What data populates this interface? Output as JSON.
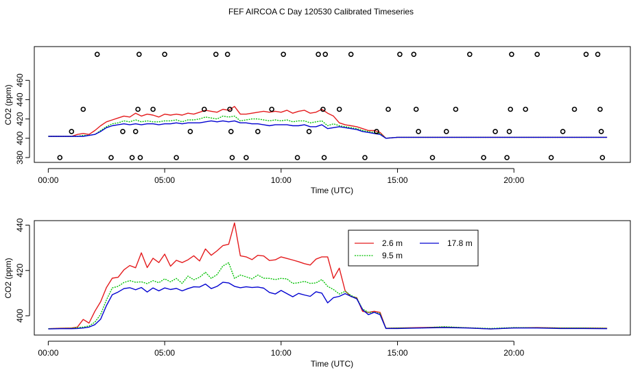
{
  "title": "FEF AIRCOA C  Day 120530  Calibrated Timeseries",
  "colors": {
    "s1": "#e41a1c",
    "s2": "#00c000",
    "s3": "#0000d0",
    "axis": "#000000",
    "bg": "#ffffff"
  },
  "chart_data": [
    {
      "type": "line",
      "id": "top",
      "xlabel": "Time (UTC)",
      "ylabel": "CO2 (ppm)",
      "xlim": [
        -0.6,
        25.0
      ],
      "ylim": [
        375,
        495
      ],
      "xticks": [
        0,
        5,
        10,
        15,
        20
      ],
      "xticklabels": [
        "00:00",
        "05:00",
        "10:00",
        "15:00",
        "20:00"
      ],
      "yticks": [
        380,
        400,
        420,
        440,
        460
      ],
      "yticklabels": [
        "380",
        "400",
        "420",
        "440",
        "460"
      ],
      "x": [
        0,
        0.5,
        1,
        1.25,
        1.5,
        1.75,
        2,
        2.25,
        2.5,
        2.75,
        3,
        3.25,
        3.5,
        3.75,
        4,
        4.25,
        4.5,
        4.75,
        5,
        5.25,
        5.5,
        5.75,
        6,
        6.25,
        6.5,
        6.75,
        7,
        7.25,
        7.5,
        7.75,
        8,
        8.25,
        8.5,
        8.75,
        9,
        9.25,
        9.5,
        9.75,
        10,
        10.25,
        10.5,
        10.75,
        11,
        11.25,
        11.5,
        11.75,
        12,
        12.25,
        12.5,
        12.75,
        13,
        13.25,
        13.5,
        13.75,
        14,
        14.25,
        14.5,
        15,
        16,
        17,
        18,
        19,
        20,
        21,
        22,
        23,
        24
      ],
      "series": [
        {
          "name": "2.6 m",
          "values": [
            402,
            402,
            402,
            404,
            405,
            404,
            408,
            413,
            417,
            419,
            421,
            423,
            422,
            426,
            423,
            425,
            424,
            422,
            425,
            424,
            425,
            424,
            426,
            425,
            427,
            429,
            428,
            427,
            430,
            429,
            433,
            425,
            425,
            426,
            427,
            428,
            427,
            428,
            427,
            429,
            426,
            428,
            429,
            426,
            427,
            430,
            426,
            423,
            416,
            414,
            413,
            412,
            410,
            408,
            408,
            406,
            400,
            401,
            401,
            401,
            401,
            401,
            401,
            401,
            401,
            401,
            401
          ]
        },
        {
          "name": "9.5 m",
          "values": [
            402,
            402,
            402,
            402,
            403,
            403,
            404,
            408,
            412,
            415,
            416,
            418,
            417,
            419,
            417,
            418,
            417,
            417,
            418,
            418,
            419,
            417,
            419,
            419,
            420,
            422,
            421,
            420,
            423,
            422,
            423,
            418,
            419,
            420,
            420,
            419,
            418,
            419,
            418,
            419,
            417,
            418,
            418,
            416,
            417,
            418,
            413,
            415,
            413,
            412,
            411,
            410,
            408,
            407,
            406,
            405,
            400,
            401,
            401,
            401,
            401,
            401,
            401,
            401,
            401,
            401,
            401
          ]
        },
        {
          "name": "17.8 m",
          "values": [
            402,
            402,
            402,
            402,
            402,
            403,
            404,
            407,
            411,
            413,
            414,
            415,
            414,
            415,
            414,
            415,
            415,
            414,
            415,
            415,
            416,
            415,
            416,
            416,
            416,
            417,
            418,
            417,
            418,
            417,
            418,
            416,
            416,
            415,
            415,
            414,
            413,
            414,
            414,
            414,
            413,
            413,
            414,
            412,
            412,
            414,
            410,
            411,
            412,
            411,
            410,
            409,
            407,
            406,
            405,
            404,
            400,
            401,
            401,
            401,
            401,
            401,
            401,
            401,
            401,
            401,
            401
          ]
        }
      ],
      "points": {
        "x": [
          0.5,
          1.0,
          1.5,
          2.1,
          2.7,
          3.2,
          3.6,
          3.75,
          3.85,
          3.9,
          3.95,
          4.5,
          5.0,
          5.5,
          6.1,
          6.7,
          7.2,
          7.7,
          7.8,
          7.85,
          7.9,
          8.5,
          9.0,
          9.6,
          10.1,
          10.7,
          11.2,
          11.6,
          11.8,
          11.85,
          11.9,
          12.5,
          13.0,
          13.6,
          14.1,
          14.6,
          15.1,
          15.7,
          15.8,
          15.9,
          16.5,
          17.1,
          17.5,
          18.1,
          18.7,
          19.2,
          19.7,
          19.8,
          19.85,
          19.9,
          20.5,
          21.0,
          21.6,
          22.1,
          22.6,
          23.1,
          23.6,
          23.7,
          23.75,
          23.8
        ],
        "y": [
          380,
          407,
          430,
          487,
          380,
          407,
          380,
          407,
          430,
          487,
          380,
          430,
          487,
          380,
          407,
          430,
          487,
          487,
          430,
          407,
          380,
          380,
          407,
          430,
          487,
          380,
          407,
          487,
          430,
          380,
          487,
          430,
          487,
          380,
          407,
          430,
          487,
          487,
          430,
          407,
          380,
          407,
          430,
          487,
          380,
          407,
          380,
          407,
          430,
          487,
          430,
          487,
          380,
          407,
          430,
          487,
          487,
          430,
          407,
          380
        ]
      },
      "legend": null
    },
    {
      "type": "line",
      "id": "bottom",
      "xlabel": "Time (UTC)",
      "ylabel": "CO2 (ppm)",
      "xlim": [
        -0.6,
        25.0
      ],
      "ylim": [
        391.5,
        442
      ],
      "xticks": [
        0,
        5,
        10,
        15,
        20
      ],
      "xticklabels": [
        "00:00",
        "05:00",
        "10:00",
        "15:00",
        "20:00"
      ],
      "yticks": [
        400,
        420,
        440
      ],
      "yticklabels": [
        "400",
        "420",
        "440"
      ],
      "x": [
        0,
        0.5,
        1,
        1.25,
        1.5,
        1.75,
        2,
        2.25,
        2.5,
        2.75,
        3,
        3.25,
        3.5,
        3.75,
        4,
        4.25,
        4.5,
        4.75,
        5,
        5.25,
        5.5,
        5.75,
        6,
        6.25,
        6.5,
        6.75,
        7,
        7.25,
        7.5,
        7.75,
        8,
        8.25,
        8.5,
        8.75,
        9,
        9.25,
        9.5,
        9.75,
        10,
        10.25,
        10.5,
        10.75,
        11,
        11.25,
        11.5,
        11.75,
        12,
        12.25,
        12.5,
        12.75,
        13,
        13.25,
        13.5,
        13.75,
        14,
        14.25,
        14.5,
        15,
        16,
        17,
        18,
        19,
        20,
        21,
        22,
        23,
        24
      ],
      "series": [
        {
          "name": "2.6 m",
          "values": [
            394.3,
            394.5,
            394.6,
            395.0,
            398.4,
            396.8,
            402.0,
            406.2,
            412.5,
            416.6,
            417.0,
            420.3,
            422.2,
            421.2,
            427.8,
            421.3,
            425.4,
            423.5,
            427.2,
            421.9,
            424.5,
            423.5,
            424.7,
            426.5,
            424.2,
            429.5,
            426.7,
            428.7,
            431.0,
            431.6,
            441.0,
            426.5,
            426.0,
            424.8,
            426.7,
            426.4,
            424.4,
            424.7,
            426.0,
            425.3,
            424.6,
            423.9,
            423.0,
            422.4,
            425.0,
            426.0,
            426.0,
            416.5,
            421.0,
            411.0,
            408.5,
            408.0,
            402.0,
            401.5,
            402.0,
            401.5,
            394.5,
            394.6,
            394.8,
            395.0,
            394.7,
            394.2,
            394.7,
            394.8,
            394.6,
            394.6,
            394.5
          ]
        },
        {
          "name": "9.5 m",
          "values": [
            394.3,
            394.4,
            394.5,
            394.8,
            395.0,
            395.5,
            397.2,
            400.6,
            407.0,
            412.3,
            413.0,
            414.7,
            415.5,
            414.8,
            415.0,
            414.2,
            415.5,
            414.6,
            416.3,
            415.0,
            416.5,
            414.3,
            417.5,
            415.9,
            417.0,
            419.2,
            416.5,
            418.2,
            422.0,
            423.4,
            416.5,
            418.0,
            417.2,
            416.3,
            418.0,
            416.6,
            416.5,
            416.0,
            416.5,
            416.3,
            414.3,
            414.6,
            415.2,
            414.3,
            414.5,
            416.0,
            413.0,
            411.6,
            409.6,
            410.8,
            409.0,
            407.8,
            403.0,
            401.5,
            401.5,
            401.0,
            394.5,
            394.6,
            394.6,
            395.2,
            394.7,
            394.4,
            394.8,
            394.7,
            394.6,
            394.6,
            394.5
          ]
        },
        {
          "name": "17.8 m",
          "values": [
            394.2,
            394.3,
            394.3,
            394.4,
            394.6,
            395.0,
            396.1,
            398.5,
            404.5,
            409.3,
            410.5,
            412.0,
            412.4,
            411.5,
            412.5,
            410.5,
            412.3,
            411.0,
            412.3,
            411.6,
            412.1,
            411.0,
            412.0,
            412.8,
            412.7,
            414.0,
            412.0,
            413.0,
            414.8,
            414.5,
            413.0,
            412.4,
            412.8,
            412.5,
            412.7,
            412.2,
            410.3,
            409.6,
            411.2,
            409.8,
            408.4,
            409.9,
            409.2,
            408.6,
            410.6,
            410.0,
            405.7,
            408.0,
            408.6,
            409.8,
            408.6,
            407.5,
            402.7,
            400.5,
            401.5,
            400.5,
            394.4,
            394.4,
            394.6,
            394.8,
            394.6,
            394.2,
            394.6,
            394.6,
            394.4,
            394.4,
            394.3
          ]
        }
      ],
      "legend": {
        "position": "top-right",
        "entries": [
          "2.6 m",
          "17.8 m",
          "9.5 m"
        ]
      }
    }
  ]
}
